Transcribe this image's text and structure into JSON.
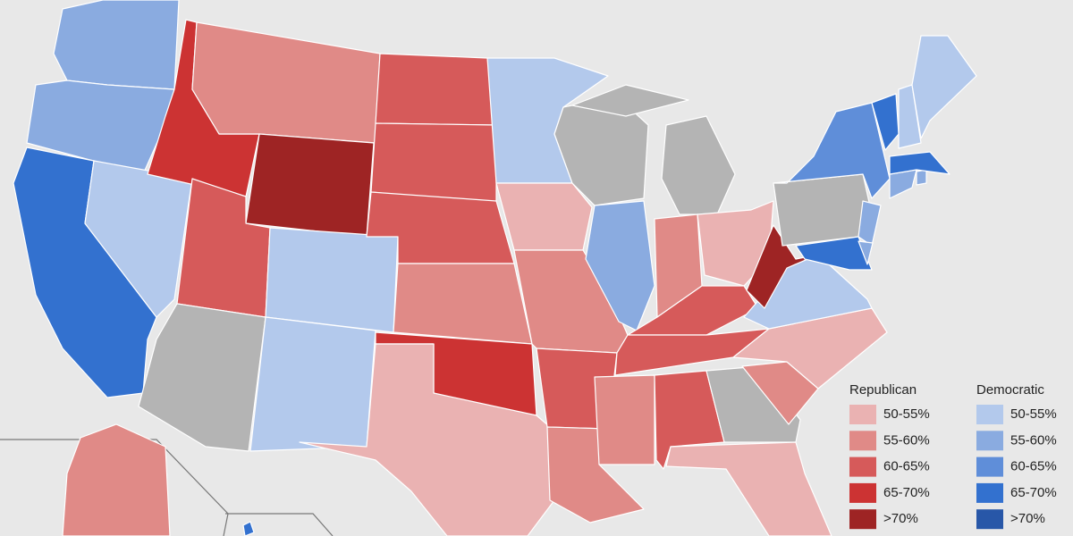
{
  "legend": {
    "groups": [
      {
        "title": "Republican",
        "items": [
          {
            "label": "50-55%",
            "color": "#eab2b2"
          },
          {
            "label": "55-60%",
            "color": "#e08a87"
          },
          {
            "label": "60-65%",
            "color": "#d65a5a"
          },
          {
            "label": "65-70%",
            "color": "#cc3333"
          },
          {
            "label": ">70%",
            "color": "#9e2424"
          }
        ]
      },
      {
        "title": "Democratic",
        "items": [
          {
            "label": "50-55%",
            "color": "#b3c9ec"
          },
          {
            "label": "55-60%",
            "color": "#8aabe0"
          },
          {
            "label": "60-65%",
            "color": "#5f8ed9"
          },
          {
            "label": "65-70%",
            "color": "#3371cf"
          },
          {
            "label": ">70%",
            "color": "#2857a8"
          }
        ]
      }
    ]
  }
}
